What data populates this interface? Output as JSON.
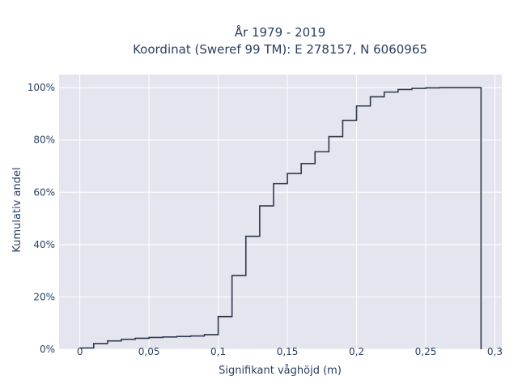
{
  "chart_data": {
    "type": "line",
    "title": "År 1979 - 2019",
    "subtitle": "Koordinat (Sweref 99 TM): E 278157, N 6060965",
    "xlabel": "Signifikant våghöjd (m)",
    "ylabel": "Kumulativ andel",
    "xlim": [
      -0.015,
      0.305
    ],
    "ylim": [
      0,
      1.05
    ],
    "x_ticks": [
      0,
      0.05,
      0.1,
      0.15,
      0.2,
      0.25,
      0.3
    ],
    "x_tick_labels": [
      "0",
      "0,05",
      "0,1",
      "0,15",
      "0,2",
      "0,25",
      "0,3"
    ],
    "y_ticks": [
      0,
      0.2,
      0.4,
      0.6,
      0.8,
      1.0
    ],
    "y_tick_labels": [
      "0%",
      "20%",
      "40%",
      "60%",
      "80%",
      "100%"
    ],
    "grid": true,
    "colors": {
      "background": "#e5e5f0",
      "grid": "#ffffff",
      "line": "#2f3a4a",
      "text": "#2a3f5f"
    },
    "series": [
      {
        "step": "post",
        "x": [
          0,
          0.01,
          0.02,
          0.03,
          0.04,
          0.05,
          0.06,
          0.07,
          0.08,
          0.09,
          0.1,
          0.11,
          0.12,
          0.13,
          0.14,
          0.15,
          0.16,
          0.17,
          0.18,
          0.19,
          0.2,
          0.21,
          0.22,
          0.23,
          0.24,
          0.25,
          0.26,
          0.27,
          0.28,
          0.29
        ],
        "y": [
          0.005,
          0.022,
          0.032,
          0.038,
          0.042,
          0.045,
          0.047,
          0.049,
          0.051,
          0.056,
          0.125,
          0.282,
          0.432,
          0.548,
          0.633,
          0.672,
          0.71,
          0.755,
          0.813,
          0.875,
          0.93,
          0.965,
          0.983,
          0.993,
          0.997,
          0.999,
          1.0,
          1.0,
          1.0,
          0.0
        ]
      }
    ]
  }
}
